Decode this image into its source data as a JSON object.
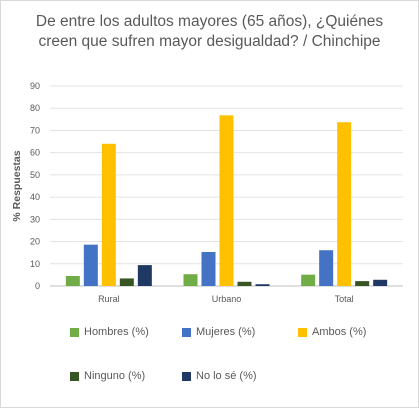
{
  "chart_data": {
    "type": "bar",
    "title_line1": "De entre los adultos mayores (65 años), ¿Quiénes",
    "title_line2": "creen que sufren mayor desigualdad? / Chinchipe",
    "ylabel": "% Respuestas",
    "xlabel": "",
    "ylim": [
      0,
      90
    ],
    "yticks": [
      "0",
      "10",
      "20",
      "30",
      "40",
      "50",
      "60",
      "70",
      "80",
      "90"
    ],
    "grid": true,
    "legend_position": "bottom",
    "categories": [
      "Rural",
      "Urbano",
      "Total"
    ],
    "series": [
      {
        "name": "Hombres (%)",
        "color": "#70ad47",
        "values": [
          4.5,
          5.3,
          5.1
        ]
      },
      {
        "name": "Mujeres (%)",
        "color": "#4472c4",
        "values": [
          18.6,
          15.3,
          16.1
        ]
      },
      {
        "name": "Ambos (%)",
        "color": "#ffc000",
        "values": [
          64.0,
          76.8,
          73.7
        ]
      },
      {
        "name": "Ninguno (%)",
        "color": "#375623",
        "values": [
          3.4,
          1.9,
          2.2
        ]
      },
      {
        "name": "No lo sé (%)",
        "color": "#203864",
        "values": [
          9.4,
          0.8,
          2.8
        ]
      }
    ]
  }
}
